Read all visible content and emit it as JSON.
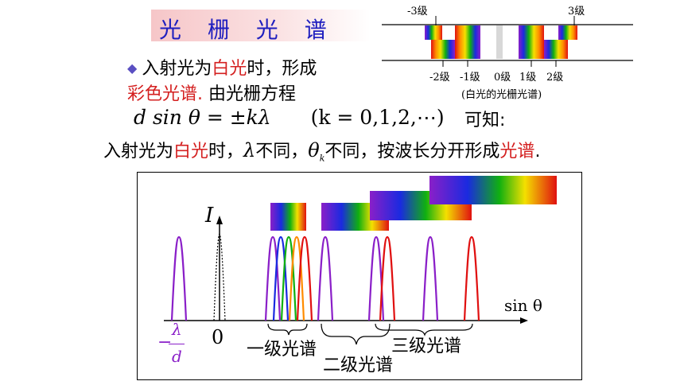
{
  "title": "光 栅 光 谱",
  "intro": {
    "bullet": "◆",
    "l1_a": "入射光为",
    "l1_b": "白光",
    "l1_c": "时，形成",
    "l2_a": "彩色光谱.",
    "l2_b": " 由光栅方程"
  },
  "formula": {
    "main": "d sin θ = ±kλ",
    "cond": "(k = 0,1,2,⋯)",
    "kezhi": "可知:"
  },
  "conclusion": {
    "a": "入射光为",
    "b": "白光",
    "c": "时，",
    "lambda": "λ",
    "d": "不同，",
    "theta": "θ",
    "sub": "k",
    "e": "不同，按波长分开形成",
    "f": "光谱",
    "g": "."
  },
  "mini_diagram": {
    "labels_top": [
      "-3级",
      "3级"
    ],
    "labels_bottom": [
      "-2级",
      "-1级",
      "0级",
      "1级",
      "2级"
    ],
    "caption": "(白光的光栅光谱)"
  },
  "plot": {
    "y_axis": "I",
    "x_axis": "sin θ",
    "zero": "0",
    "neg_num": "λ",
    "neg_den": "d",
    "neg_sign": "−",
    "order1": "一级光谱",
    "order2": "二级光谱",
    "order3": "三级光谱"
  },
  "colors": {
    "title_text": "#1f1fbf",
    "highlight": "#d42020",
    "violet_peak": "#8a1fc8",
    "red_peak": "#e01010"
  }
}
